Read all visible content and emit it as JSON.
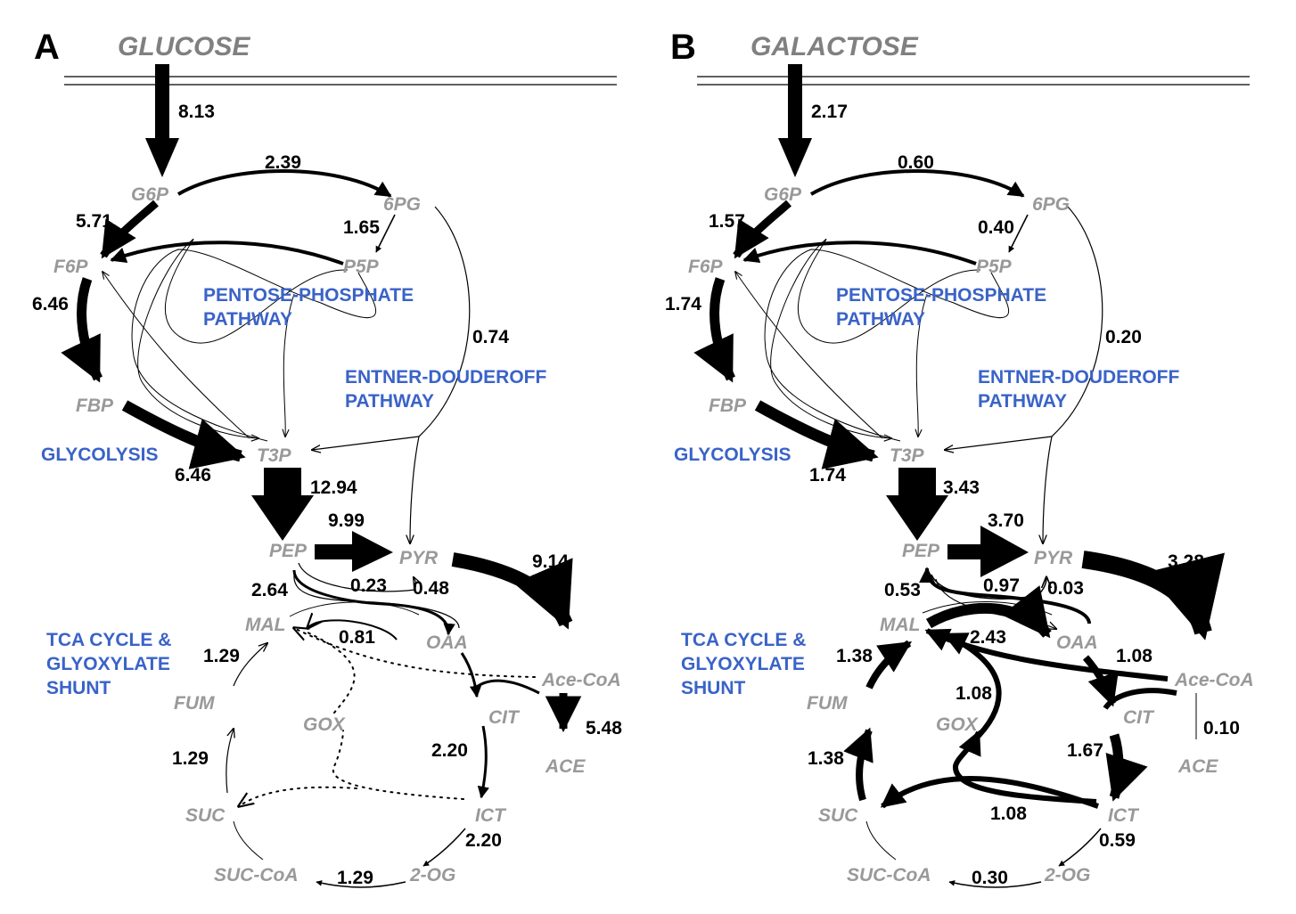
{
  "panels": [
    {
      "letter": "A",
      "substrate": "GLUCOSE",
      "metabolites": {
        "g6p": "G6P",
        "pg6": "6PG",
        "f6p": "F6P",
        "p5p": "P5P",
        "fbp": "FBP",
        "t3p": "T3P",
        "pep": "PEP",
        "pyr": "PYR",
        "mal": "MAL",
        "oaa": "OAA",
        "acecoa": "Ace-CoA",
        "cit": "CIT",
        "fum": "FUM",
        "gox": "GOX",
        "ace": "ACE",
        "suc": "SUC",
        "ict": "ICT",
        "succoa": "SUC-CoA",
        "og2": "2-OG"
      },
      "pathways": {
        "ppp1": "PENTOSE-PHOSPHATE",
        "ppp2": "PATHWAY",
        "ed1": "ENTNER-DOUDEROFF",
        "ed2": "PATHWAY",
        "glycolysis": "GLYCOLYSIS",
        "tca1": "TCA CYCLE &",
        "tca2": "GLYOXYLATE",
        "tca3": "SHUNT"
      },
      "fluxes": {
        "uptake": "8.13",
        "g6p_6pg": "2.39",
        "g6p_f6p": "5.71",
        "pg6_p5p": "1.65",
        "f6p_fbp": "6.46",
        "ed": "0.74",
        "fbp_t3p": "6.46",
        "t3p_pep": "12.94",
        "pep_pyr": "9.99",
        "pep_oaa": "2.64",
        "pyr_pep": "0.23",
        "oaa_pyr": "0.48",
        "pyr_acecoa": "9.14",
        "oaa_mal": "0.81",
        "mal_fum": "1.29",
        "fum_suc": "1.29",
        "cit_ict": "2.20",
        "ict_2og": "2.20",
        "og2_succoa": "1.29",
        "acecoa_ace": "5.48"
      }
    },
    {
      "letter": "B",
      "substrate": "GALACTOSE",
      "metabolites": {
        "g6p": "G6P",
        "pg6": "6PG",
        "f6p": "F6P",
        "p5p": "P5P",
        "fbp": "FBP",
        "t3p": "T3P",
        "pep": "PEP",
        "pyr": "PYR",
        "mal": "MAL",
        "oaa": "OAA",
        "acecoa": "Ace-CoA",
        "cit": "CIT",
        "fum": "FUM",
        "gox": "GOX",
        "ace": "ACE",
        "suc": "SUC",
        "ict": "ICT",
        "succoa": "SUC-CoA",
        "og2": "2-OG"
      },
      "pathways": {
        "ppp1": "PENTOSE-PHOSPHATE",
        "ppp2": "PATHWAY",
        "ed1": "ENTNER-DOUDEROFF",
        "ed2": "PATHWAY",
        "glycolysis": "GLYCOLYSIS",
        "tca1": "TCA CYCLE &",
        "tca2": "GLYOXYLATE",
        "tca3": "SHUNT"
      },
      "fluxes": {
        "uptake": "2.17",
        "g6p_6pg": "0.60",
        "g6p_f6p": "1.57",
        "pg6_p5p": "0.40",
        "f6p_fbp": "1.74",
        "ed": "0.20",
        "fbp_t3p": "1.74",
        "t3p_pep": "3.43",
        "pep_pyr": "3.70",
        "pep_oaa": "0.53",
        "pyr_pep": "0.97",
        "oaa_pyr": "0.03",
        "pyr_acecoa": "3.28",
        "oaa_mal": "2.43",
        "acecoa_mal": "1.08",
        "mal_fum": "1.38",
        "fum_suc": "1.38",
        "gox_mal": "1.08",
        "cit_ict": "1.67",
        "ict_gox": "1.08",
        "ict_2og": "0.59",
        "og2_succoa": "0.30",
        "acecoa_ace": "0.10"
      }
    }
  ]
}
